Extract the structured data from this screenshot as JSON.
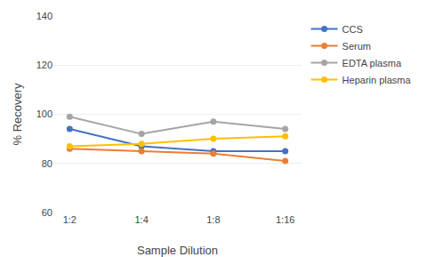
{
  "chart_data": {
    "type": "line",
    "categories": [
      "1:2",
      "1:4",
      "1:8",
      "1:16"
    ],
    "series": [
      {
        "name": "CCS",
        "color": "#4472C4",
        "marker": "circle",
        "values": [
          94,
          87,
          85,
          85
        ]
      },
      {
        "name": "Serum",
        "color": "#ED7D31",
        "marker": "circle",
        "values": [
          86,
          85,
          84,
          81
        ]
      },
      {
        "name": "EDTA plasma",
        "color": "#A5A5A5",
        "marker": "circle",
        "values": [
          99,
          92,
          97,
          94
        ]
      },
      {
        "name": "Heparin plasma",
        "color": "#FFC000",
        "marker": "circle",
        "values": [
          87,
          88,
          90,
          91
        ]
      }
    ],
    "xlabel": "Sample Dilution",
    "ylabel": "% Recovery",
    "ylim": [
      60,
      140
    ],
    "yticks": [
      60,
      80,
      100,
      120,
      140
    ],
    "grid": "y",
    "legend": "right"
  }
}
